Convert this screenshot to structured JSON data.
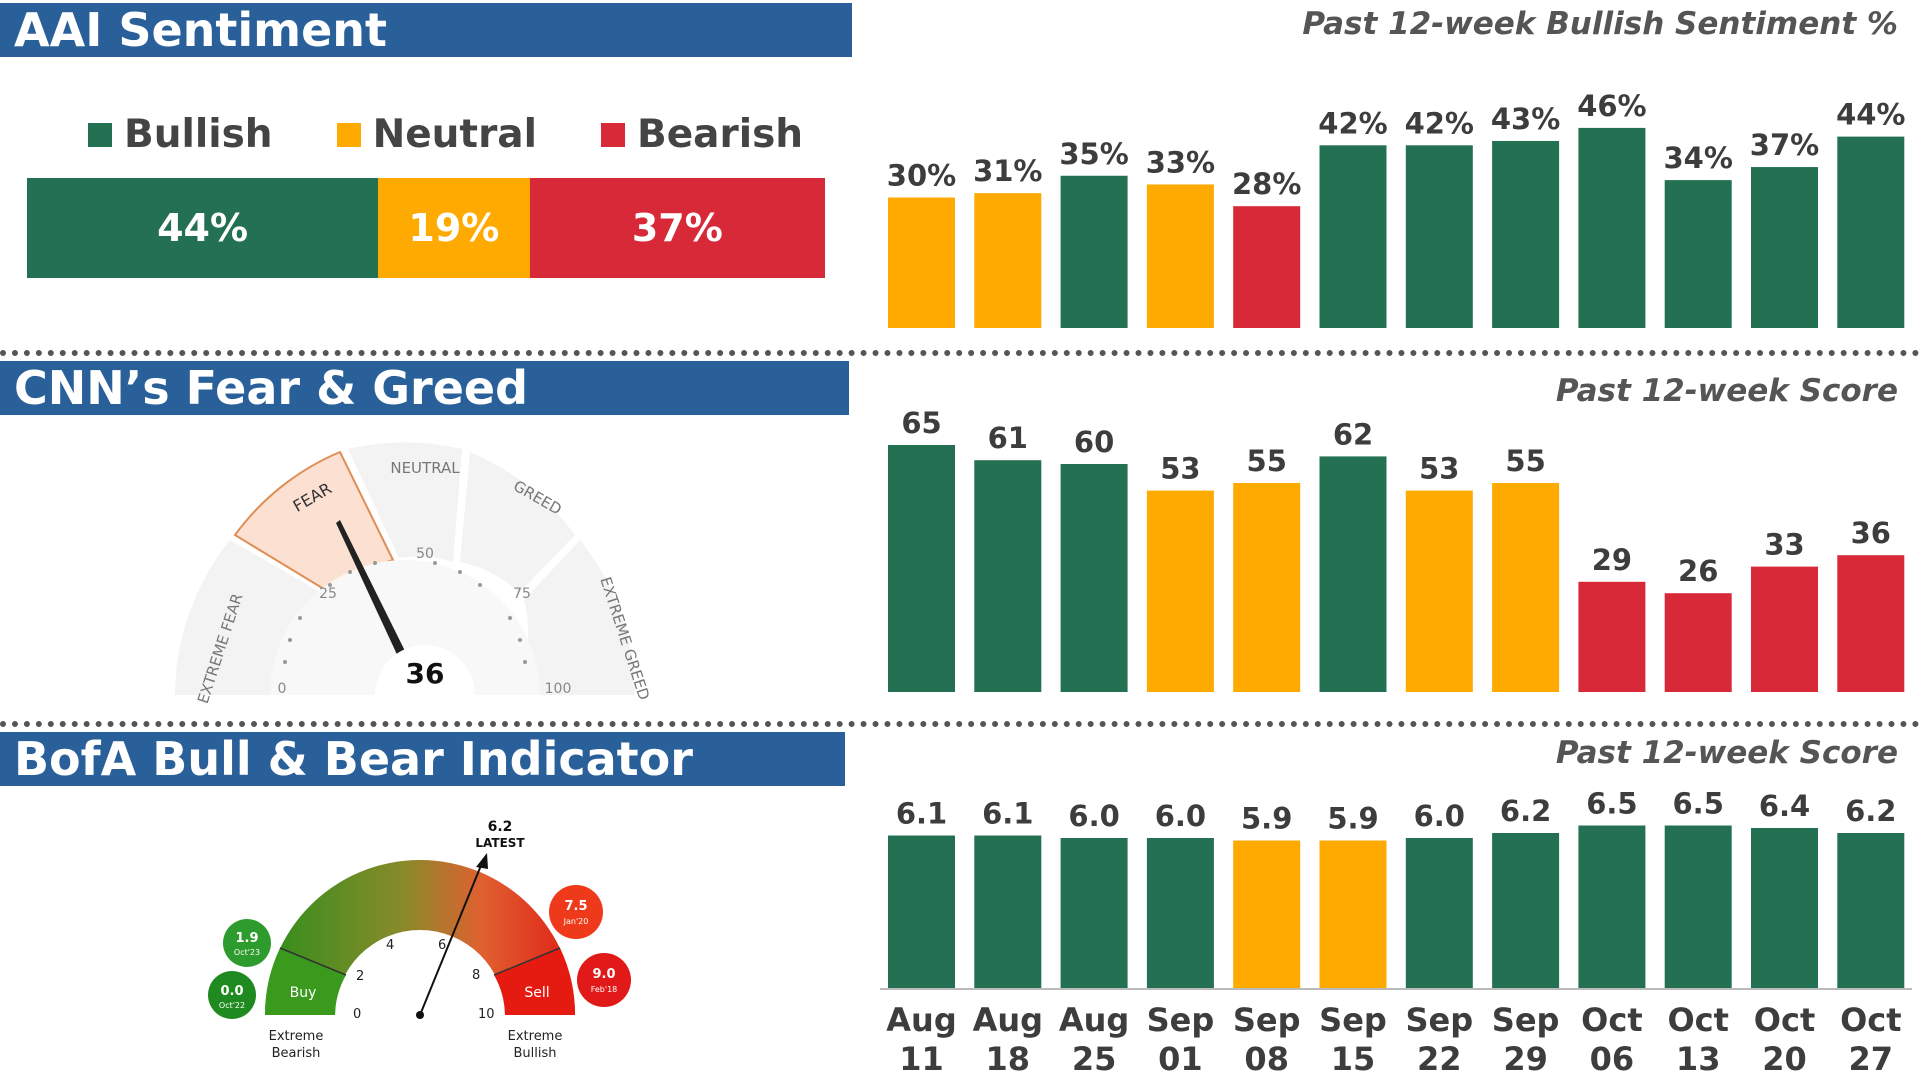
{
  "colors": {
    "green": "#237152",
    "orange": "#ffaa00",
    "red": "#d82939",
    "banner": "#2a6099"
  },
  "aai": {
    "title": "AAI Sentiment",
    "subtitle": "Past 12-week Bullish Sentiment %",
    "legend": [
      {
        "label": "Bullish",
        "color": "#237152"
      },
      {
        "label": "Neutral",
        "color": "#ffaa00"
      },
      {
        "label": "Bearish",
        "color": "#d82939"
      }
    ],
    "current": [
      {
        "label": "44%",
        "value": 44,
        "color": "#237152"
      },
      {
        "label": "19%",
        "value": 19,
        "color": "#ffaa00"
      },
      {
        "label": "37%",
        "value": 37,
        "color": "#d82939"
      }
    ]
  },
  "cnn": {
    "title": "CNN’s Fear & Greed",
    "subtitle": "Past 12-week Score",
    "gauge": {
      "zones": [
        "EXTREME FEAR",
        "FEAR",
        "NEUTRAL",
        "GREED",
        "EXTREME GREED"
      ],
      "ticks": [
        "0",
        "25",
        "50",
        "75",
        "100"
      ],
      "value": 36,
      "value_label": "36"
    }
  },
  "bofa": {
    "title": "BofA Bull & Bear Indicator",
    "subtitle": "Past 12-week Score",
    "gauge": {
      "latest_value": "6.2",
      "latest_label": "LATEST",
      "ticks": [
        "0",
        "2",
        "4",
        "6",
        "8",
        "10"
      ],
      "buy_label": "Buy",
      "sell_label": "Sell",
      "left_label_1": "Extreme",
      "left_label_2": "Bearish",
      "right_label_1": "Extreme",
      "right_label_2": "Bullish",
      "bubbles": [
        {
          "value": "1.9",
          "date": "Oct'23",
          "color": "#2e9b2e"
        },
        {
          "value": "0.0",
          "date": "Oct'22",
          "color": "#1f8a1f"
        },
        {
          "value": "7.5",
          "date": "Jan'20",
          "color": "#ee3a1a"
        },
        {
          "value": "9.0",
          "date": "Feb'18",
          "color": "#e11919"
        }
      ]
    }
  },
  "chart_data": [
    {
      "type": "bar",
      "title": "Past 12-week Bullish Sentiment %",
      "categories": [
        "Aug 11",
        "Aug 18",
        "Aug 25",
        "Sep 01",
        "Sep 08",
        "Sep 15",
        "Sep 22",
        "Sep 29",
        "Oct 06",
        "Oct 13",
        "Oct 20",
        "Oct 27"
      ],
      "values": [
        30,
        31,
        35,
        33,
        28,
        42,
        42,
        43,
        46,
        34,
        37,
        44
      ],
      "labels": [
        "30%",
        "31%",
        "35%",
        "33%",
        "28%",
        "42%",
        "42%",
        "43%",
        "46%",
        "34%",
        "37%",
        "44%"
      ],
      "bar_colors": [
        "#ffaa00",
        "#ffaa00",
        "#237152",
        "#ffaa00",
        "#d82939",
        "#237152",
        "#237152",
        "#237152",
        "#237152",
        "#237152",
        "#237152",
        "#237152"
      ]
    },
    {
      "type": "bar",
      "title": "Past 12-week Score",
      "categories": [
        "Aug 11",
        "Aug 18",
        "Aug 25",
        "Sep 01",
        "Sep 08",
        "Sep 15",
        "Sep 22",
        "Sep 29",
        "Oct 06",
        "Oct 13",
        "Oct 20",
        "Oct 27"
      ],
      "values": [
        65,
        61,
        60,
        53,
        55,
        62,
        53,
        55,
        29,
        26,
        33,
        36
      ],
      "labels": [
        "65",
        "61",
        "60",
        "53",
        "55",
        "62",
        "53",
        "55",
        "29",
        "26",
        "33",
        "36"
      ],
      "bar_colors": [
        "#237152",
        "#237152",
        "#237152",
        "#ffaa00",
        "#ffaa00",
        "#237152",
        "#ffaa00",
        "#ffaa00",
        "#d82939",
        "#d82939",
        "#d82939",
        "#d82939"
      ]
    },
    {
      "type": "bar",
      "title": "Past 12-week Score",
      "categories": [
        "Aug 11",
        "Aug 18",
        "Aug 25",
        "Sep 01",
        "Sep 08",
        "Sep 15",
        "Sep 22",
        "Sep 29",
        "Oct 06",
        "Oct 13",
        "Oct 20",
        "Oct 27"
      ],
      "x_labels": [
        [
          "Aug",
          "11"
        ],
        [
          "Aug",
          "18"
        ],
        [
          "Aug",
          "25"
        ],
        [
          "Sep",
          "01"
        ],
        [
          "Sep",
          "08"
        ],
        [
          "Sep",
          "15"
        ],
        [
          "Sep",
          "22"
        ],
        [
          "Sep",
          "29"
        ],
        [
          "Oct",
          "06"
        ],
        [
          "Oct",
          "13"
        ],
        [
          "Oct",
          "20"
        ],
        [
          "Oct",
          "27"
        ]
      ],
      "values": [
        6.1,
        6.1,
        6.0,
        6.0,
        5.9,
        5.9,
        6.0,
        6.2,
        6.5,
        6.5,
        6.4,
        6.2
      ],
      "labels": [
        "6.1",
        "6.1",
        "6.0",
        "6.0",
        "5.9",
        "5.9",
        "6.0",
        "6.2",
        "6.5",
        "6.5",
        "6.4",
        "6.2"
      ],
      "bar_colors": [
        "#237152",
        "#237152",
        "#237152",
        "#237152",
        "#ffaa00",
        "#ffaa00",
        "#237152",
        "#237152",
        "#237152",
        "#237152",
        "#237152",
        "#237152"
      ]
    }
  ]
}
